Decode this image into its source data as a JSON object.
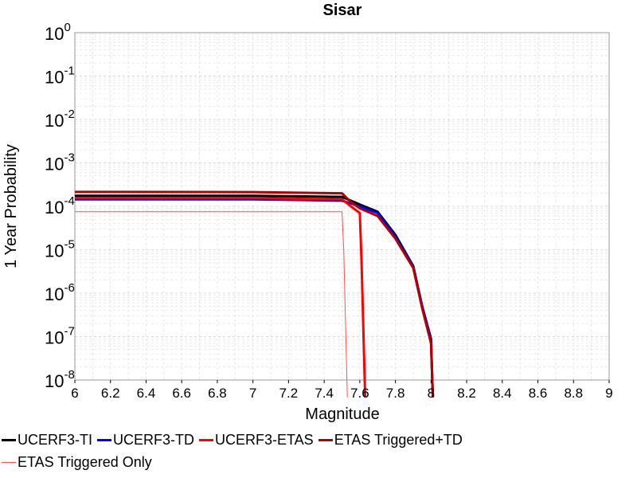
{
  "chart_data": {
    "type": "line",
    "title": "Sisar",
    "xlabel": "Magnitude",
    "ylabel": "1 Year Probability",
    "xlim": [
      6,
      9
    ],
    "ylim": [
      1e-08,
      1
    ],
    "y_scale": "log",
    "grid": true,
    "legend_position": "bottom",
    "x_ticks": [
      "6",
      "6.2",
      "6.4",
      "6.6",
      "6.8",
      "7",
      "7.2",
      "7.4",
      "7.6",
      "7.8",
      "8",
      "8.2",
      "8.4",
      "8.6",
      "8.8",
      "9"
    ],
    "y_ticks": [
      {
        "base": "10",
        "exp": "0",
        "value": 1
      },
      {
        "base": "10",
        "exp": "-1",
        "value": 0.1
      },
      {
        "base": "10",
        "exp": "-2",
        "value": 0.01
      },
      {
        "base": "10",
        "exp": "-3",
        "value": 0.001
      },
      {
        "base": "10",
        "exp": "-4",
        "value": 0.0001
      },
      {
        "base": "10",
        "exp": "-5",
        "value": 1e-05
      },
      {
        "base": "10",
        "exp": "-6",
        "value": 1e-06
      },
      {
        "base": "10",
        "exp": "-7",
        "value": 1e-07
      },
      {
        "base": "10",
        "exp": "-8",
        "value": 1e-08
      }
    ],
    "series": [
      {
        "name": "UCERF3-TI",
        "color": "#000000",
        "width": 3,
        "x": [
          6.0,
          7.0,
          7.5,
          7.6,
          7.7,
          7.8,
          7.9,
          7.95,
          8.0,
          8.01
        ],
        "y": [
          0.000175,
          0.000175,
          0.000165,
          0.00011,
          7.5e-05,
          2.2e-05,
          4.2e-06,
          5e-07,
          9e-08,
          4e-09
        ]
      },
      {
        "name": "UCERF3-TD",
        "color": "#0000ff",
        "width": 3,
        "x": [
          6.0,
          7.0,
          7.5,
          7.6,
          7.7,
          7.8,
          7.9,
          7.95,
          8.0,
          8.01
        ],
        "y": [
          0.000145,
          0.000145,
          0.000135,
          0.0001,
          7e-05,
          2e-05,
          4e-06,
          5e-07,
          8e-08,
          4e-09
        ]
      },
      {
        "name": "UCERF3-ETAS",
        "color": "#ff0000",
        "width": 3,
        "x": [
          6.0,
          7.0,
          7.5,
          7.55,
          7.6,
          7.61,
          7.63
        ],
        "y": [
          0.000155,
          0.000155,
          0.000145,
          0.0001,
          7e-05,
          5e-06,
          4e-09
        ]
      },
      {
        "name": "ETAS Triggered+TD",
        "color": "#b40000",
        "width": 3,
        "x": [
          6.0,
          7.0,
          7.5,
          7.55,
          7.6,
          7.7,
          7.8,
          7.9,
          7.95,
          8.0,
          8.01
        ],
        "y": [
          0.000215,
          0.000213,
          0.0002,
          0.000125,
          9e-05,
          6e-05,
          1.8e-05,
          3.8e-06,
          4.5e-07,
          7e-08,
          4e-09
        ]
      },
      {
        "name": "ETAS Triggered Only",
        "color": "#ff5050",
        "width": 1,
        "x": [
          6.0,
          7.0,
          7.5,
          7.51,
          7.53
        ],
        "y": [
          7.5e-05,
          7.5e-05,
          7.5e-05,
          1e-05,
          4e-09
        ]
      }
    ]
  }
}
